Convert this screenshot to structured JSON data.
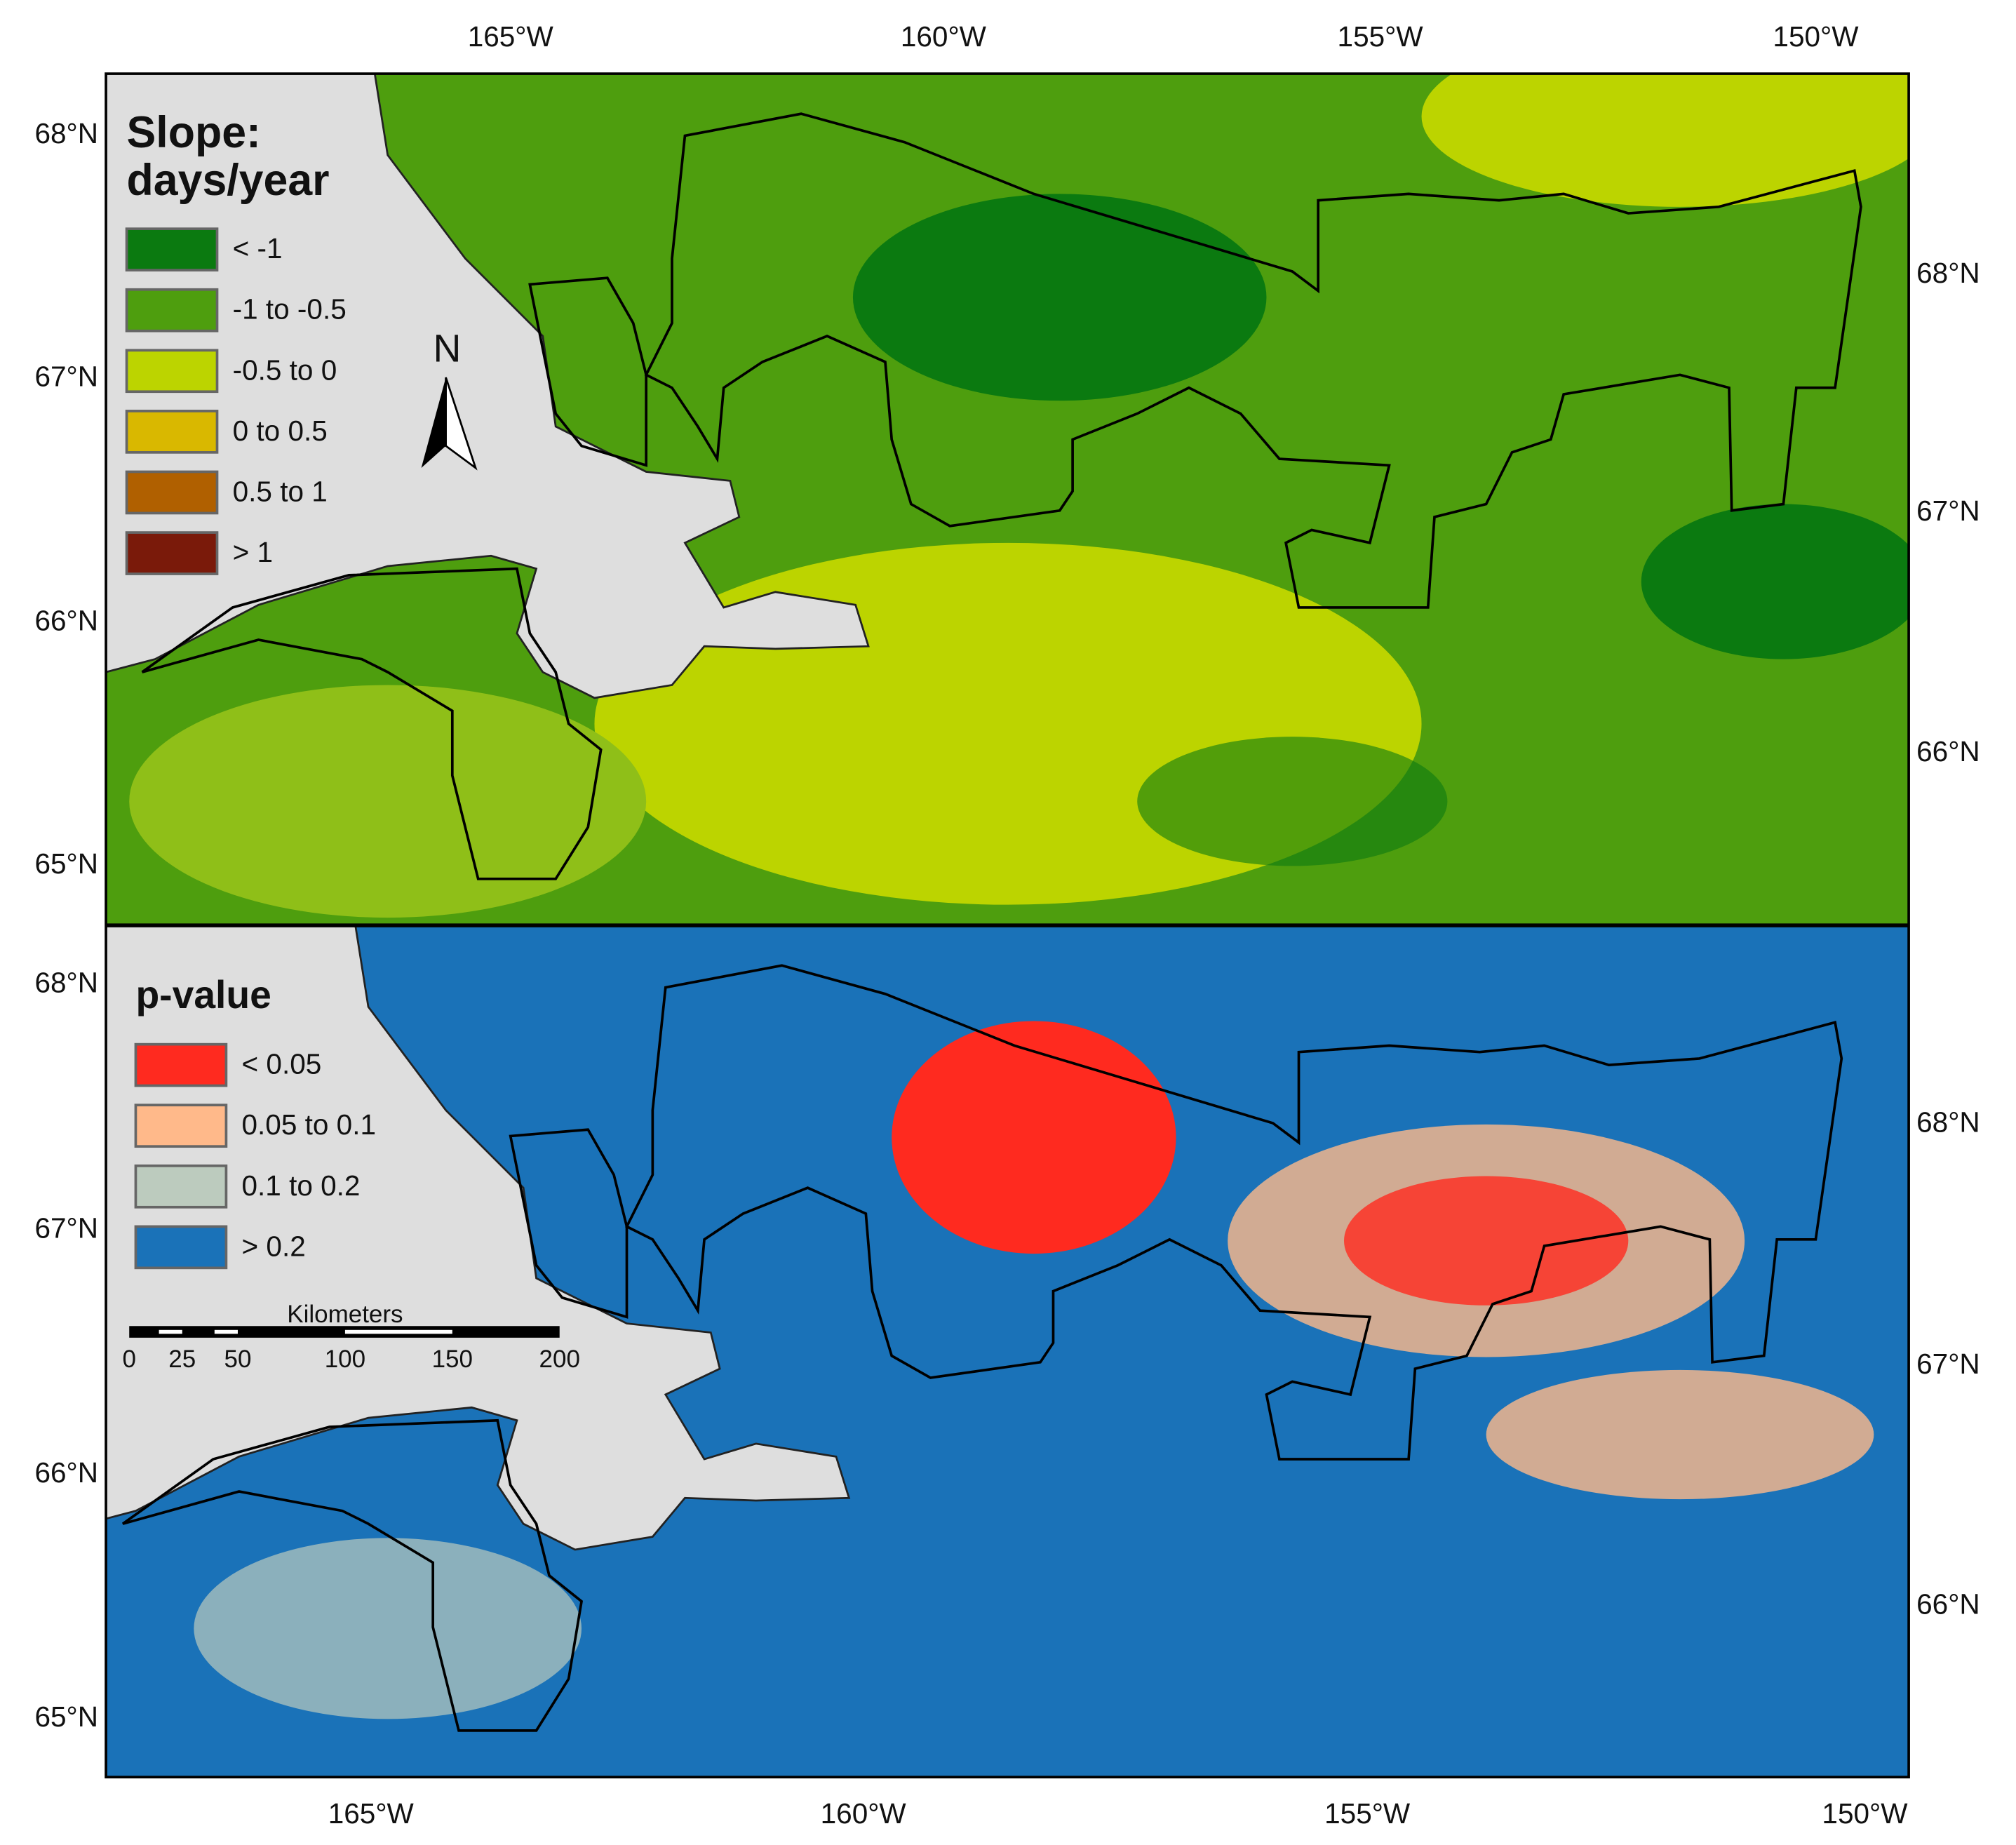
{
  "figure": {
    "panels": [
      {
        "legend_title": [
          "Slope:",
          "days/year"
        ],
        "legend": [
          {
            "label": "< -1",
            "color": "#0b7a10"
          },
          {
            "label": "-1 to -0.5",
            "color": "#4e9e0e"
          },
          {
            "label": "-0.5 to 0",
            "color": "#bcd400"
          },
          {
            "label": "0 to 0.5",
            "color": "#d9b800"
          },
          {
            "label": "0.5 to 1",
            "color": "#b06000"
          },
          {
            "label": "> 1",
            "color": "#7a1a0a"
          }
        ],
        "lon_labels": [
          "165°W",
          "160°W",
          "155°W",
          "150°W"
        ],
        "lat_labels_left": [
          "68°N",
          "67°N",
          "66°N",
          "65°N"
        ],
        "lat_labels_right": [
          "68°N",
          "67°N",
          "66°N"
        ]
      },
      {
        "legend_title": [
          "p-value"
        ],
        "legend": [
          {
            "label": "< 0.05",
            "color": "#ff2a1f"
          },
          {
            "label": "0.05 to 0.1",
            "color": "#ffb98a"
          },
          {
            "label": "0.1 to 0.2",
            "color": "#bccbbe"
          },
          {
            "label": "> 0.2",
            "color": "#1a72b8"
          }
        ],
        "lon_labels": [
          "165°W",
          "160°W",
          "155°W",
          "150°W"
        ],
        "lat_labels_left": [
          "68°N",
          "67°N",
          "66°N",
          "65°N"
        ],
        "lat_labels_right": [
          "68°N",
          "67°N",
          "66°N"
        ]
      }
    ],
    "north_label": "N",
    "scale_bar": {
      "title": "Kilometers",
      "labels": [
        "0",
        "25",
        "50",
        "100",
        "150",
        "200"
      ]
    }
  }
}
